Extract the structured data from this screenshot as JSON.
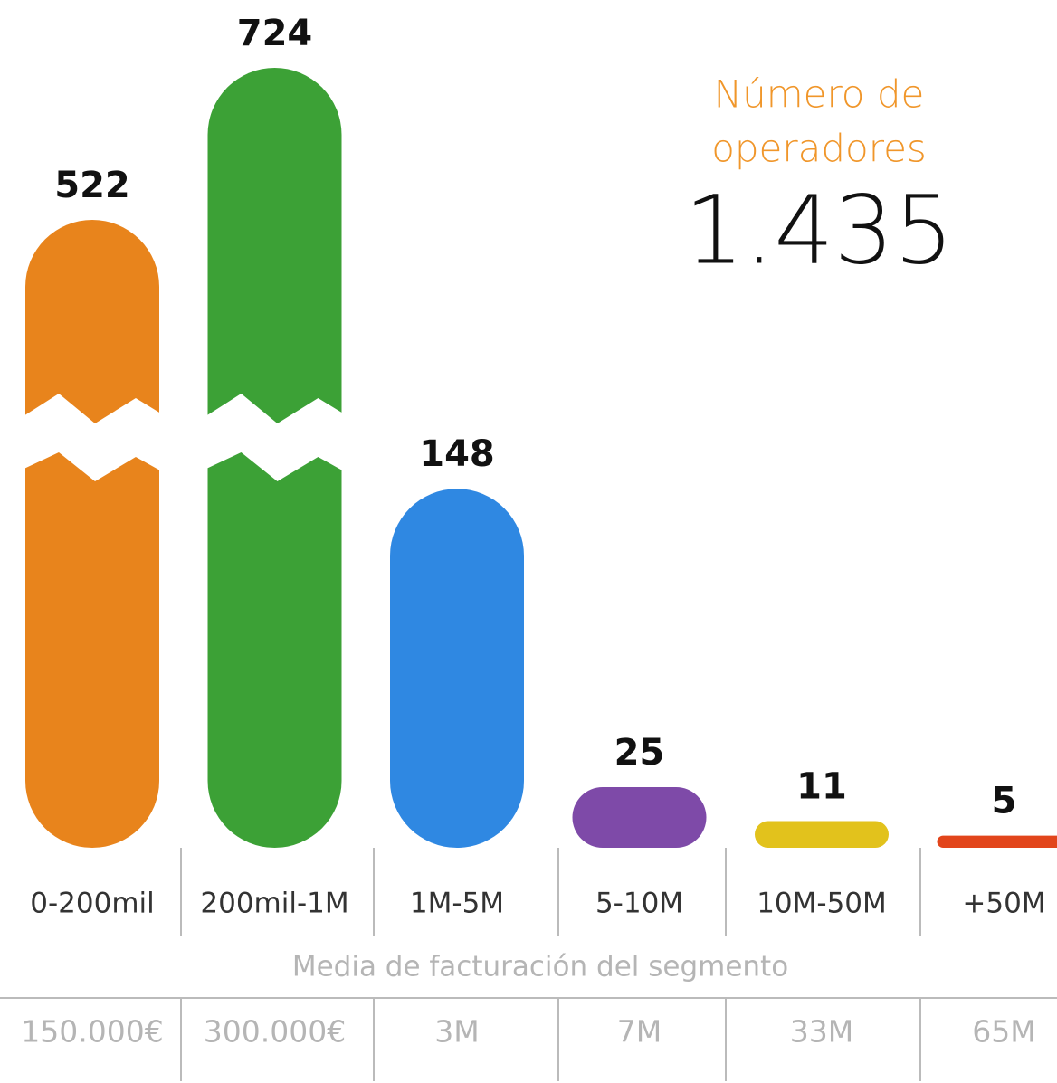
{
  "chart_data": {
    "type": "bar",
    "title": [
      "Número de",
      "operadores"
    ],
    "subtitle": "1.435",
    "categories": [
      "0-200mil",
      "200mil-1M",
      "1M-5M",
      "5-10M",
      "10M-50M",
      "+50M"
    ],
    "values": [
      522,
      724,
      148,
      25,
      11,
      5
    ],
    "colors": [
      "#e8841c",
      "#3ca136",
      "#2f88e2",
      "#7e4aa8",
      "#e2c21c",
      "#e2451b"
    ],
    "ylim": [
      0,
      724
    ],
    "ybreak": [
      163,
      255
    ],
    "table": {
      "title": "Media de facturación del segmento",
      "values": [
        "150.000€",
        "300.000€",
        "3M",
        "7M",
        "33M",
        "65M"
      ]
    }
  }
}
